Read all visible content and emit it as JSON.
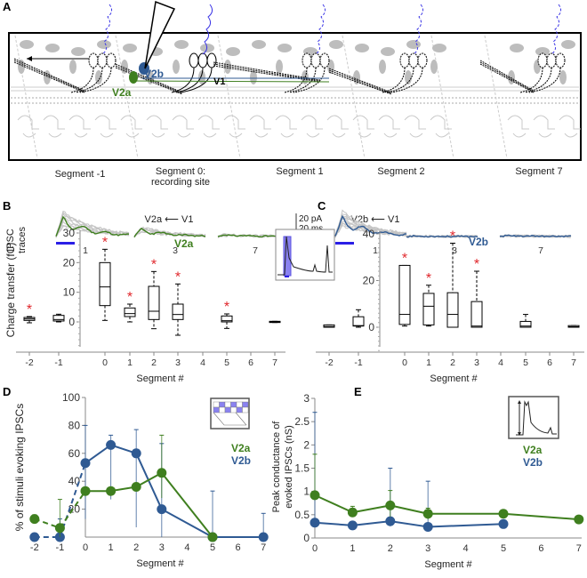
{
  "colors": {
    "v2a": "#3f7f1f",
    "v2b": "#2f5a93",
    "star": "#e0262b",
    "stim": "#2a1ee6",
    "gray": "#bdbdbd"
  },
  "panel_a": {
    "label": "A",
    "cells": {
      "v2a": "V2a",
      "v2b": "V2b",
      "v1": "V1"
    },
    "segments": [
      "Segment -1",
      "Segment 0:",
      "recording site",
      "Segment 1",
      "Segment 2",
      "Segment 7"
    ]
  },
  "traces": {
    "row_label_1": "IPSC",
    "row_label_2": "traces",
    "scale_pa": "20 pA",
    "scale_ms": "20 ms",
    "b_title": "V2a ⟵ V1",
    "c_title": "V2b ⟵ V1",
    "segments": [
      "1",
      "3",
      "7"
    ]
  },
  "chart_data": [
    {
      "panel": "B",
      "type": "box",
      "ylabel": "Charge transfer (fC)",
      "xlabel": "Segment #",
      "series_label": "V2a",
      "categories": [
        "-2",
        "-1",
        "0",
        "1",
        "2",
        "3",
        "4",
        "5",
        "6",
        "7"
      ],
      "ylim": [
        -8,
        30
      ],
      "yticks": [
        "0",
        "10",
        "20",
        "30"
      ],
      "boxes": [
        {
          "x": "-2",
          "min": -0.3,
          "q1": 0.5,
          "median": 1,
          "q3": 1.5,
          "max": 1.8,
          "sig": true
        },
        {
          "x": "-1",
          "min": 0,
          "q1": 0.3,
          "median": 0.8,
          "q3": 2.2,
          "max": 2.6,
          "sig": false
        },
        {
          "x": "0",
          "min": 0.5,
          "q1": 5.5,
          "median": 11.8,
          "q3": 20,
          "max": 24.5,
          "sig": true
        },
        {
          "x": "1",
          "min": 0,
          "q1": 1.8,
          "median": 2.8,
          "q3": 4.7,
          "max": 6,
          "sig": true
        },
        {
          "x": "2",
          "min": -2.3,
          "q1": 0.8,
          "median": 3.6,
          "q3": 12,
          "max": 17,
          "sig": true
        },
        {
          "x": "3",
          "min": -4.5,
          "q1": 0.8,
          "median": 2.5,
          "q3": 6,
          "max": 12.8,
          "sig": true
        },
        {
          "x": "5",
          "min": -2.2,
          "q1": 0,
          "median": 0.4,
          "q3": 2,
          "max": 2.7,
          "sig": true
        },
        {
          "x": "7",
          "min": -0.2,
          "q1": -0.2,
          "median": 0,
          "q3": 0.2,
          "max": 0.2,
          "sig": false
        }
      ]
    },
    {
      "panel": "C",
      "type": "box",
      "ylabel": "",
      "xlabel": "Segment #",
      "series_label": "V2b",
      "categories": [
        "-2",
        "-1",
        "0",
        "1",
        "2",
        "3",
        "4",
        "5",
        "6",
        "7"
      ],
      "ylim": [
        -10,
        40
      ],
      "yticks": [
        "0",
        "20",
        "40"
      ],
      "boxes": [
        {
          "x": "-2",
          "min": 0,
          "q1": 0,
          "median": 0.3,
          "q3": 1,
          "max": 1,
          "sig": false
        },
        {
          "x": "-1",
          "min": 0,
          "q1": 0.5,
          "median": 0.7,
          "q3": 4.5,
          "max": 7.5,
          "sig": false
        },
        {
          "x": "0",
          "min": 0.5,
          "q1": 1.2,
          "median": 5.5,
          "q3": 26.5,
          "max": 26.5,
          "sig": true
        },
        {
          "x": "1",
          "min": 0.5,
          "q1": 1,
          "median": 9,
          "q3": 14.5,
          "max": 18,
          "sig": true
        },
        {
          "x": "2",
          "min": 0,
          "q1": 0,
          "median": 5.5,
          "q3": 14.8,
          "max": 36,
          "sig": true
        },
        {
          "x": "3",
          "min": 0,
          "q1": 0,
          "median": 0.5,
          "q3": 11,
          "max": 24,
          "sig": true
        },
        {
          "x": "5",
          "min": 0,
          "q1": 0,
          "median": 0.5,
          "q3": 2.5,
          "max": 5.5,
          "sig": false
        },
        {
          "x": "7",
          "min": 0,
          "q1": 0,
          "median": 0.2,
          "q3": 0.7,
          "max": 0.7,
          "sig": false
        }
      ]
    },
    {
      "panel": "D",
      "type": "line",
      "ylabel": "% of stimuli evoking IPSCs",
      "xlabel": "Segment #",
      "xticks": [
        "-2",
        "-1",
        "0",
        "1",
        "2",
        "3",
        "4",
        "5",
        "6",
        "7"
      ],
      "ylim": [
        0,
        100
      ],
      "yticks": [
        "20",
        "40",
        "60",
        "80",
        "100"
      ],
      "series": [
        {
          "name": "V2a",
          "x": [
            -2,
            -1,
            0,
            1,
            2,
            3,
            5
          ],
          "y": [
            13,
            6.5,
            33,
            33,
            36,
            46,
            0
          ],
          "err_lo": [
            11,
            0,
            33,
            33,
            36,
            28,
            0
          ],
          "err_hi": [
            16,
            27,
            33,
            33,
            36,
            73,
            0
          ]
        },
        {
          "name": "V2b",
          "x": [
            -2,
            -1,
            0,
            1,
            2,
            3,
            5,
            7
          ],
          "y": [
            0,
            0,
            53,
            66,
            60,
            20,
            0,
            0
          ],
          "err_lo": [
            0,
            0,
            13,
            27,
            7,
            0,
            0,
            0
          ],
          "err_hi": [
            0,
            13,
            80,
            73,
            77,
            67,
            33,
            17
          ]
        }
      ],
      "note": "segments -2 to 0 joined by dashed lines"
    },
    {
      "panel": "E",
      "type": "line",
      "ylabel": "Peak conductance of evoked IPSCs (nS)",
      "xlabel": "Segment #",
      "xticks": [
        "0",
        "1",
        "2",
        "3",
        "4",
        "5",
        "6",
        "7"
      ],
      "ylim": [
        0,
        3
      ],
      "yticks": [
        "0",
        "0.5",
        "1",
        "1.5",
        "2",
        "2.5",
        "3"
      ],
      "series": [
        {
          "name": "V2a",
          "x": [
            0,
            1,
            2,
            3,
            5,
            7
          ],
          "y": [
            0.92,
            0.55,
            0.7,
            0.52,
            0.52,
            0.4
          ],
          "err_lo": [
            0.92,
            0.45,
            0.45,
            0.4,
            0.45,
            0.4
          ],
          "err_hi": [
            1.8,
            0.68,
            1.02,
            0.64,
            0.6,
            0.4
          ]
        },
        {
          "name": "V2b",
          "x": [
            0,
            1,
            2,
            3,
            5
          ],
          "y": [
            0.33,
            0.27,
            0.36,
            0.24,
            0.3
          ],
          "err_lo": [
            0.25,
            0.2,
            0.25,
            0.2,
            0.22
          ],
          "err_hi": [
            2.7,
            0.35,
            1.5,
            1.22,
            0.38
          ]
        }
      ]
    }
  ],
  "panels": {
    "b": "B",
    "c": "C",
    "d": "D",
    "e": "E"
  },
  "labels": {
    "v2a": "V2a",
    "v2b": "V2b",
    "star": "*",
    "e_ylabel_1": "Peak conductance of",
    "e_ylabel_2": "evoked IPSCs (nS)"
  }
}
